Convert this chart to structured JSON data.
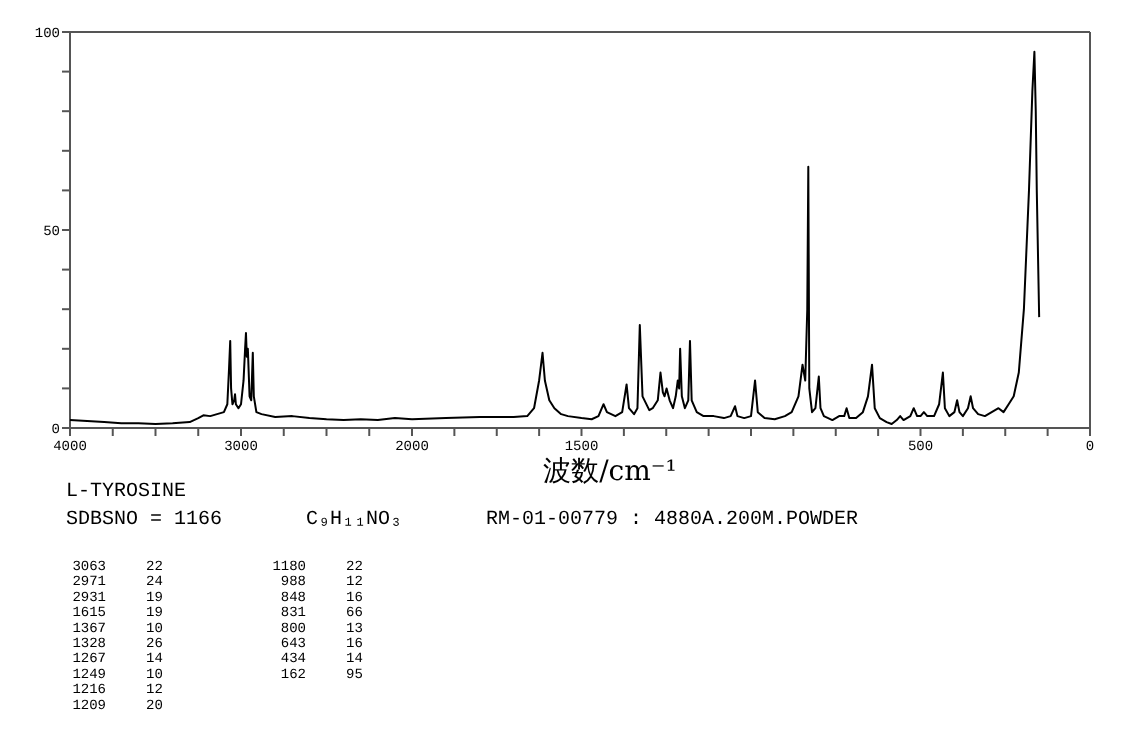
{
  "chart_data": [
    {
      "type": "line",
      "title": "L-TYROSINE",
      "subtitle": "SDBSNO = 1166",
      "annotations": [
        "C₉H₁₁NO₃",
        "RM-01-00779 : 4880A.200M.POWDER",
        "3063 22",
        "2971 24",
        "2931 19",
        "1615 19",
        "1367 10",
        "1328 26",
        "1267 14",
        "1249 10",
        "1216 12",
        "1209 20",
        "1180 22",
        "988 12",
        "848 16",
        "831 66",
        "800 13",
        "643 16",
        "434 14",
        "162 95"
      ],
      "xlim": [
        4000,
        2000
      ],
      "ylim": [
        0,
        100
      ],
      "xticks": [
        4000,
        {
          "value": 3750,
          "label": null
        },
        {
          "value": 3500,
          "label": null
        },
        {
          "value": 3250,
          "label": null
        },
        3000,
        {
          "value": 2750,
          "label": null
        },
        {
          "value": 2500,
          "label": null
        },
        {
          "value": 2250,
          "label": null
        },
        2000
      ],
      "yticks": [
        0,
        {
          "value": 10,
          "label": null
        },
        {
          "value": 20,
          "label": null
        },
        {
          "value": 30,
          "label": null
        },
        {
          "value": 40,
          "label": null
        },
        50,
        {
          "value": 60,
          "label": null
        },
        {
          "value": 70,
          "label": null
        },
        {
          "value": 80,
          "label": null
        },
        {
          "value": 90,
          "label": null
        },
        100
      ],
      "line_style": "solid",
      "series": [
        {
          "color": "#000000",
          "x": [
            4000,
            3900,
            3800,
            3700,
            3600,
            3500,
            3400,
            3300,
            3250,
            3220,
            3180,
            3140,
            3100,
            3080,
            3070,
            3063,
            3058,
            3050,
            3040,
            3035,
            3030,
            3015,
            3000,
            2985,
            2976,
            2971,
            2966,
            2960,
            2950,
            2940,
            2931,
            2925,
            2910,
            2880,
            2800,
            2700,
            2600,
            2500,
            2400,
            2300,
            2200,
            2100,
            2000
          ],
          "values": [
            2,
            1.8,
            1.5,
            1.2,
            1.2,
            1.0,
            1.2,
            1.5,
            2.5,
            3.2,
            3,
            3.5,
            4,
            6,
            15,
            22,
            10,
            6,
            7,
            8.5,
            6,
            5,
            6,
            12,
            20,
            24,
            18,
            20,
            8,
            7,
            19,
            8,
            4,
            3.5,
            2.8,
            3,
            2.5,
            2.2,
            2,
            2.2,
            2,
            2.5,
            2.2
          ]
        }
      ]
    },
    {
      "type": "line",
      "xlabel": "波数/cm⁻¹",
      "tick_labels": "x",
      "xlim": [
        2000,
        0
      ],
      "ylim": [
        0,
        100
      ],
      "xticks": [
        {
          "value": 1875,
          "label": null
        },
        {
          "value": 1750,
          "label": null
        },
        {
          "value": 1625,
          "label": null
        },
        1500,
        {
          "value": 1375,
          "label": null
        },
        {
          "value": 1250,
          "label": null
        },
        {
          "value": 1125,
          "label": null
        },
        {
          "value": 1000,
          "label": null
        },
        {
          "value": 875,
          "label": null
        },
        {
          "value": 750,
          "label": null
        },
        {
          "value": 625,
          "label": null
        },
        500,
        {
          "value": 375,
          "label": null
        },
        {
          "value": 250,
          "label": null
        },
        {
          "value": 125,
          "label": null
        },
        0
      ],
      "line_style": "solid",
      "series": [
        {
          "color": "#000000",
          "x": [
            2000,
            1900,
            1800,
            1700,
            1660,
            1640,
            1625,
            1615,
            1608,
            1595,
            1580,
            1560,
            1540,
            1500,
            1470,
            1450,
            1440,
            1435,
            1425,
            1400,
            1380,
            1367,
            1360,
            1345,
            1335,
            1328,
            1320,
            1300,
            1290,
            1275,
            1267,
            1260,
            1255,
            1249,
            1240,
            1230,
            1222,
            1216,
            1212,
            1209,
            1204,
            1195,
            1185,
            1180,
            1175,
            1160,
            1140,
            1110,
            1080,
            1060,
            1047,
            1040,
            1020,
            1000,
            988,
            980,
            960,
            930,
            900,
            880,
            860,
            848,
            840,
            834,
            831,
            828,
            820,
            810,
            800,
            795,
            785,
            760,
            740,
            725,
            718,
            710,
            690,
            670,
            655,
            643,
            635,
            620,
            600,
            585,
            570,
            560,
            550,
            530,
            520,
            510,
            500,
            490,
            480,
            460,
            445,
            434,
            428,
            415,
            400,
            392,
            385,
            375,
            360,
            352,
            345,
            330,
            310,
            290,
            270,
            255,
            240,
            225,
            210,
            195,
            180,
            170,
            164,
            160,
            157,
            150
          ],
          "values": [
            2.2,
            2.5,
            2.8,
            2.8,
            3,
            5,
            12,
            19,
            12,
            7,
            5,
            3.5,
            3,
            2.5,
            2.2,
            3,
            5,
            6,
            4,
            3,
            4,
            11,
            5,
            3.5,
            5,
            26,
            8,
            4.5,
            5,
            7,
            14,
            9,
            8,
            10,
            7,
            5,
            8,
            12,
            10,
            20,
            8,
            5,
            7,
            22,
            7,
            4,
            3,
            3,
            2.5,
            3,
            5.5,
            3,
            2.5,
            3,
            12,
            4,
            2.5,
            2.2,
            3,
            4,
            8,
            16,
            12,
            30,
            66,
            10,
            4,
            5,
            13,
            5,
            3,
            2,
            3,
            3,
            5,
            2.5,
            2.5,
            4,
            8,
            16,
            5,
            2.5,
            1.5,
            1,
            2,
            3,
            2,
            3,
            5,
            3,
            3,
            4,
            3,
            3,
            6,
            14,
            5,
            3,
            4,
            7,
            4,
            3,
            5,
            8,
            5,
            3.5,
            3,
            4,
            5,
            4,
            6,
            8,
            14,
            30,
            60,
            85,
            95,
            80,
            60,
            28
          ]
        }
      ]
    }
  ]
}
